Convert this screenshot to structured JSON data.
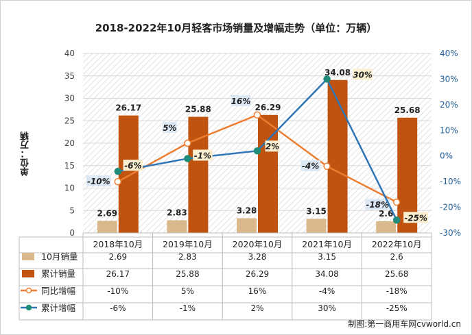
{
  "title": "2018-2022年10月轻客市场销量及增幅走势（单位：万辆）",
  "credit": "制图:第一商用车网cvworld.cn",
  "chart_data": {
    "type": "bar",
    "title": "2018-2022年10月轻客市场销量及增幅走势（单位：万辆）",
    "ylabel": "单位：万辆",
    "categories": [
      "2018年10月",
      "2019年10月",
      "2020年10月",
      "2021年10月",
      "2022年10月"
    ],
    "ylim": [
      0,
      40
    ],
    "y2lim": [
      -0.3,
      0.4
    ],
    "yticks": [
      "0",
      "5",
      "10",
      "15",
      "20",
      "25",
      "30",
      "35",
      "40"
    ],
    "y2ticks": [
      "-30%",
      "-20%",
      "-10%",
      "0%",
      "10%",
      "20%",
      "30%",
      "40%"
    ],
    "series": [
      {
        "name": "10月销量",
        "kind": "bar",
        "axis": "left",
        "color": "#d9b98c",
        "values": [
          2.69,
          2.83,
          3.28,
          3.15,
          2.6
        ],
        "labels": [
          "2.69",
          "2.83",
          "3.28",
          "3.15",
          "2.6"
        ]
      },
      {
        "name": "累计销量",
        "kind": "bar",
        "axis": "left",
        "color": "#c0530f",
        "values": [
          26.17,
          25.88,
          26.29,
          34.08,
          25.68
        ],
        "labels": [
          "26.17",
          "25.88",
          "26.29",
          "34.08",
          "25.68"
        ]
      },
      {
        "name": "同比增幅",
        "kind": "line",
        "axis": "right",
        "color": "#ed7d31",
        "marker": "hollow",
        "values": [
          -0.1,
          0.05,
          0.16,
          -0.04,
          -0.18
        ],
        "labels": [
          "-10%",
          "5%",
          "16%",
          "-4%",
          "-18%"
        ]
      },
      {
        "name": "累计增幅",
        "kind": "line",
        "axis": "right",
        "color": "#2e75b6",
        "marker": "filled",
        "values": [
          -0.06,
          -0.01,
          0.02,
          0.3,
          -0.25
        ],
        "labels": [
          "-6%",
          "-1%",
          "2%",
          "30%",
          "-25%"
        ]
      }
    ],
    "grid": true,
    "legend": "data-table-below"
  }
}
